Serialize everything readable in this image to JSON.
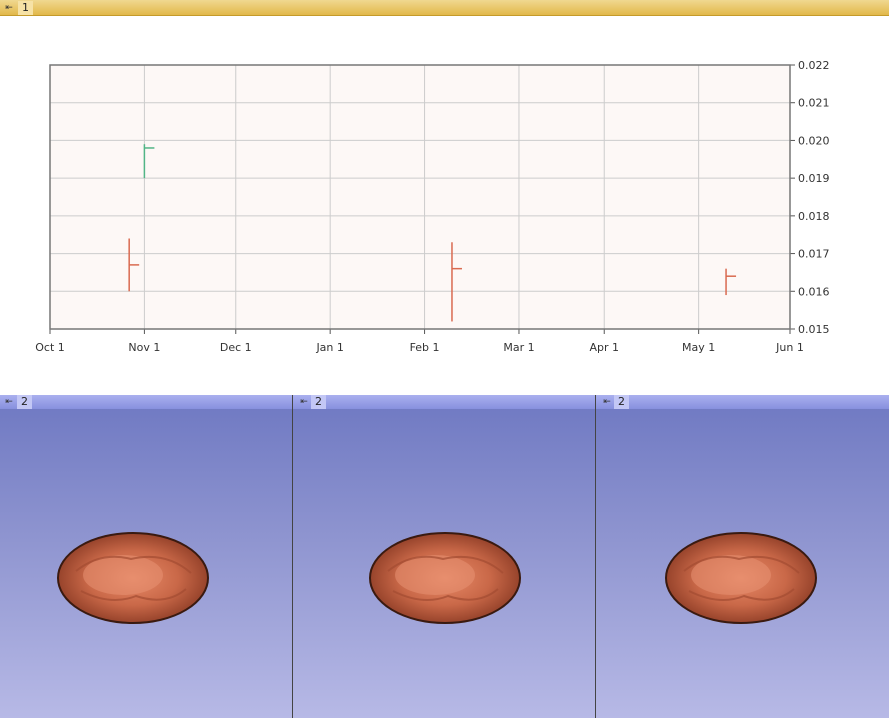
{
  "top_view": {
    "pin_icon": "pin-icon",
    "label": "1"
  },
  "chart_data": {
    "type": "candlestick",
    "x_tick_labels": [
      "Oct 1",
      "Nov 1",
      "Dec 1",
      "Jan 1",
      "Feb 1",
      "Mar 1",
      "Apr 1",
      "May 1",
      "Jun 1"
    ],
    "y_tick_labels": [
      "0.015",
      "0.016",
      "0.017",
      "0.018",
      "0.019",
      "0.020",
      "0.021",
      "0.022"
    ],
    "ylim": [
      0.015,
      0.022
    ],
    "xlim_days": [
      0,
      243
    ],
    "x_tick_days": [
      0,
      31,
      61,
      92,
      123,
      154,
      182,
      213,
      243
    ],
    "grid": true,
    "colors": {
      "up": "#52b586",
      "down": "#d96a50",
      "plot_bg": "#fdf8f6",
      "grid": "#cccccc"
    },
    "ohlc": [
      {
        "date": "Oct 27",
        "day": 26,
        "open": 0.0167,
        "high": 0.0174,
        "low": 0.016,
        "close": 0.0167,
        "dir": "down"
      },
      {
        "date": "Nov 1",
        "day": 31,
        "open": 0.019,
        "high": 0.0199,
        "low": 0.019,
        "close": 0.0198,
        "dir": "up"
      },
      {
        "date": "Feb 10",
        "day": 132,
        "open": 0.0172,
        "high": 0.0173,
        "low": 0.0152,
        "close": 0.0166,
        "dir": "down"
      },
      {
        "date": "May 11",
        "day": 222,
        "open": 0.0165,
        "high": 0.0166,
        "low": 0.0159,
        "close": 0.0164,
        "dir": "down"
      }
    ]
  },
  "views": [
    {
      "pin_icon": "pin-icon",
      "label": "2",
      "model": "kidney-shaped-3d-model"
    },
    {
      "pin_icon": "pin-icon",
      "label": "2",
      "model": "kidney-shaped-3d-model"
    },
    {
      "pin_icon": "pin-icon",
      "label": "2",
      "model": "kidney-shaped-3d-model"
    }
  ]
}
